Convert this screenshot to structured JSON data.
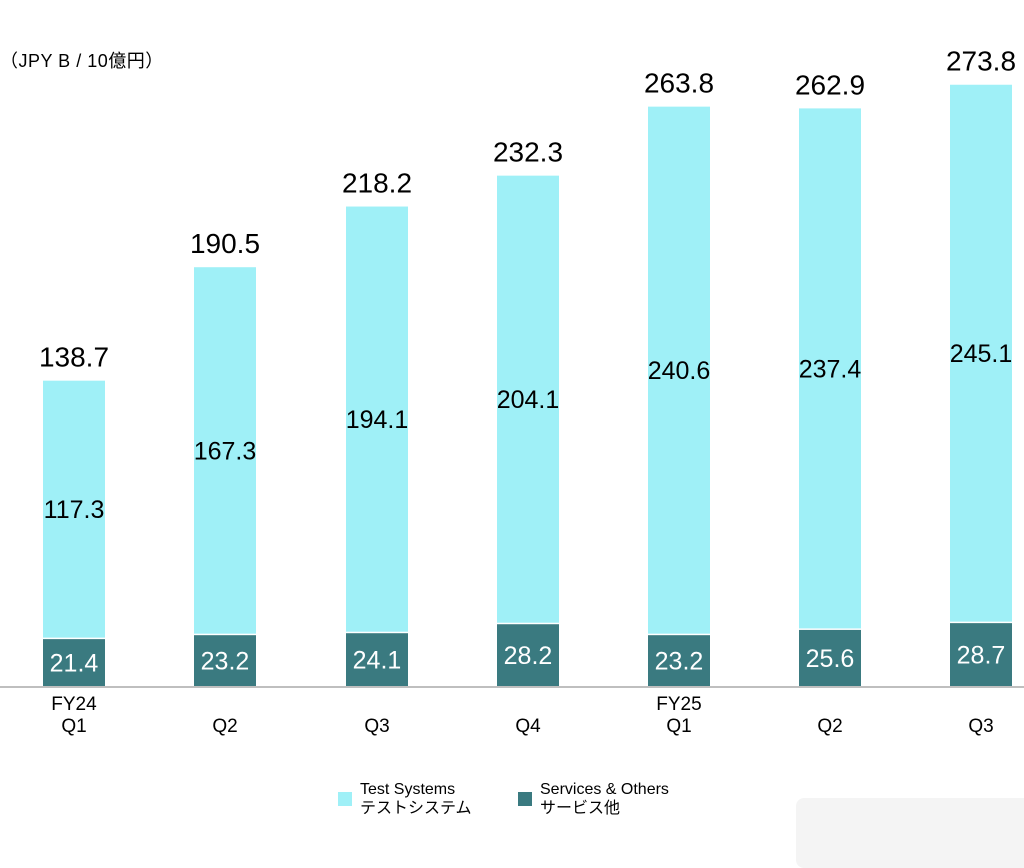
{
  "unit_label": "（JPY B / 10億円）",
  "colors": {
    "test_systems": "#9ff0f7",
    "services_others": "#3a7a80",
    "axis": "#bfbfbf"
  },
  "chart_data": {
    "type": "bar",
    "stacked": true,
    "categories": [
      "FY24\nQ1",
      "Q2",
      "Q3",
      "Q4",
      "FY25\nQ1",
      "Q2",
      "Q3"
    ],
    "series": [
      {
        "name": "Services & Others\nサービス他",
        "values": [
          21.4,
          23.2,
          24.1,
          28.2,
          23.2,
          25.6,
          28.7
        ]
      },
      {
        "name": "Test Systems\nテストシステム",
        "values": [
          117.3,
          167.3,
          194.1,
          204.1,
          240.6,
          237.4,
          245.1
        ]
      }
    ],
    "totals": [
      138.7,
      190.5,
      218.2,
      232.3,
      263.8,
      262.9,
      273.8
    ],
    "legend_position": "bottom",
    "grid": false
  },
  "legend": [
    {
      "line1": "Test Systems",
      "line2": "テストシステム",
      "color": "#9ff0f7"
    },
    {
      "line1": "Services & Others",
      "line2": "サービス他",
      "color": "#3a7a80"
    }
  ]
}
